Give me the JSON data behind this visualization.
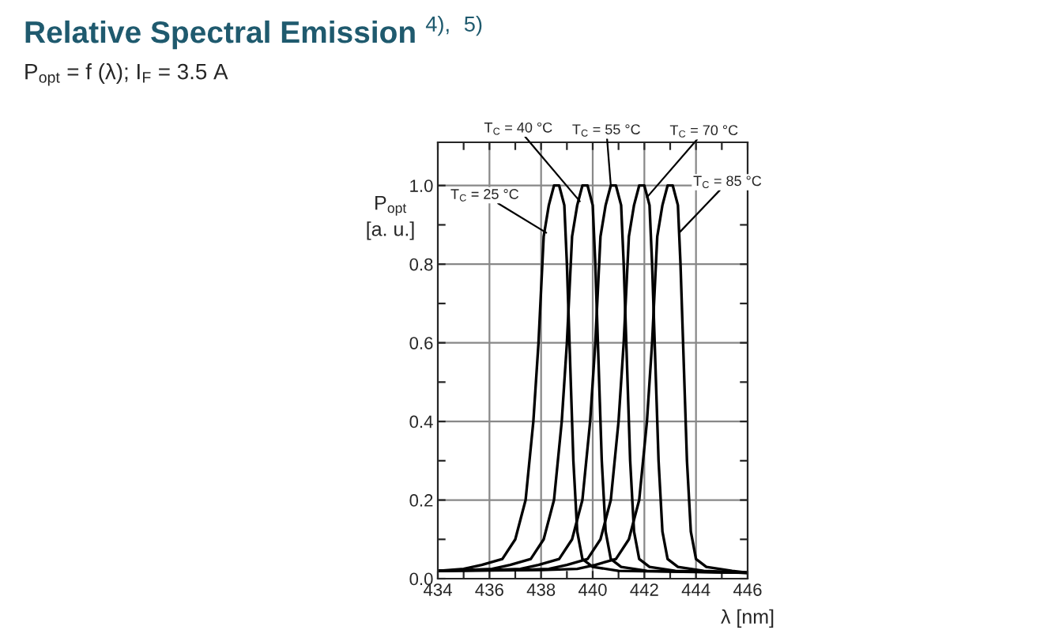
{
  "chart_data": {
    "type": "line",
    "title": "Relative Spectral Emission $^{4),}$ $^{5)}$",
    "subtitle": "P$_{opt}$ = f (λ); I$_{F}$ = 3.5 A",
    "xlabel": "λ [nm]",
    "ylabel": "P$_{opt}$\n[a. u.]",
    "series": [
      {
        "color": "#000000",
        "x": [
          434,
          435,
          435.7,
          436.5,
          437,
          437.4,
          437.7,
          437.9,
          438.1,
          438.3,
          438.5,
          438.7,
          438.9,
          439.0,
          439.1,
          439.25,
          439.4,
          439.6,
          440,
          441,
          446
        ],
        "values": [
          0.02,
          0.025,
          0.035,
          0.05,
          0.1,
          0.2,
          0.4,
          0.6,
          0.87,
          0.95,
          1.0,
          1.0,
          0.95,
          0.8,
          0.6,
          0.3,
          0.12,
          0.05,
          0.03,
          0.02,
          0.015
        ]
      },
      {
        "color": "#000000",
        "x": [
          434,
          435,
          436.1,
          436.8,
          437.6,
          438.1,
          438.5,
          438.8,
          439.0,
          439.2,
          439.4,
          439.6,
          439.8,
          440.0,
          440.1,
          440.2,
          440.35,
          440.5,
          440.7,
          441.1,
          442.1,
          446
        ],
        "values": [
          0.02,
          0.022,
          0.025,
          0.035,
          0.05,
          0.1,
          0.2,
          0.4,
          0.6,
          0.87,
          0.95,
          1.0,
          1.0,
          0.95,
          0.8,
          0.6,
          0.3,
          0.12,
          0.05,
          0.03,
          0.02,
          0.015
        ]
      },
      {
        "color": "#000000",
        "x": [
          434,
          436,
          437.2,
          437.9,
          438.7,
          439.2,
          439.6,
          439.9,
          440.1,
          440.3,
          440.5,
          440.7,
          440.9,
          441.1,
          441.2,
          441.3,
          441.45,
          441.6,
          441.8,
          442.2,
          443.2,
          446
        ],
        "values": [
          0.02,
          0.022,
          0.025,
          0.035,
          0.05,
          0.1,
          0.2,
          0.4,
          0.6,
          0.87,
          0.95,
          1.0,
          1.0,
          0.95,
          0.8,
          0.6,
          0.3,
          0.12,
          0.05,
          0.03,
          0.02,
          0.015
        ]
      },
      {
        "color": "#000000",
        "x": [
          434,
          437,
          438.3,
          439.0,
          439.8,
          440.3,
          440.7,
          441.0,
          441.2,
          441.4,
          441.6,
          441.8,
          442.0,
          442.2,
          442.3,
          442.4,
          442.55,
          442.7,
          442.9,
          443.3,
          444.3,
          446
        ],
        "values": [
          0.02,
          0.022,
          0.025,
          0.035,
          0.05,
          0.1,
          0.2,
          0.4,
          0.6,
          0.87,
          0.95,
          1.0,
          1.0,
          0.95,
          0.8,
          0.6,
          0.3,
          0.12,
          0.05,
          0.03,
          0.02,
          0.015
        ]
      },
      {
        "color": "#000000",
        "x": [
          434,
          438,
          439.4,
          440.1,
          440.9,
          441.4,
          441.8,
          442.1,
          442.3,
          442.5,
          442.7,
          442.9,
          443.1,
          443.3,
          443.4,
          443.5,
          443.65,
          443.8,
          444.0,
          444.4,
          445.4,
          446
        ],
        "values": [
          0.02,
          0.022,
          0.025,
          0.035,
          0.05,
          0.1,
          0.2,
          0.4,
          0.6,
          0.87,
          0.95,
          1.0,
          1.0,
          0.95,
          0.8,
          0.6,
          0.3,
          0.12,
          0.05,
          0.03,
          0.02,
          0.015
        ]
      }
    ],
    "annotations": [
      {
        "text": "T$_{C}$ = 25 °C",
        "x": 438.2,
        "y": 0.88
      },
      {
        "text": "T$_{C}$ = 40 °C",
        "x": 439.5,
        "y": 0.96
      },
      {
        "text": "T$_{C}$ = 55 °C",
        "x": 440.7,
        "y": 1.0
      },
      {
        "text": "T$_{C}$ = 70 °C",
        "x": 442.1,
        "y": 0.97
      },
      {
        "text": "T$_{C}$ = 85 °C",
        "x": 443.35,
        "y": 0.88
      }
    ],
    "xlim": [
      434,
      446
    ],
    "xticks": [
      434,
      {
        "value": 435,
        "label": null
      },
      436,
      {
        "value": 437,
        "label": null
      },
      438,
      {
        "value": 439,
        "label": null
      },
      440,
      {
        "value": 441,
        "label": null
      },
      442,
      {
        "value": 443,
        "label": null
      },
      444,
      {
        "value": 445,
        "label": null
      },
      446
    ],
    "ylim": [
      0,
      1.11
    ],
    "yticks": [
      {
        "value": 0,
        "label": "0.0"
      },
      {
        "value": 0.1,
        "label": null
      },
      {
        "value": 0.2,
        "label": "0.2"
      },
      {
        "value": 0.3,
        "label": null
      },
      {
        "value": 0.4,
        "label": "0.4"
      },
      {
        "value": 0.5,
        "label": null
      },
      {
        "value": 0.6,
        "label": "0.6"
      },
      {
        "value": 0.7,
        "label": null
      },
      {
        "value": 0.8,
        "label": "0.8"
      },
      {
        "value": 0.9,
        "label": null
      },
      {
        "value": 1.0,
        "label": "1.0"
      }
    ],
    "grid": true,
    "marker": "none",
    "line_style": "solid"
  }
}
